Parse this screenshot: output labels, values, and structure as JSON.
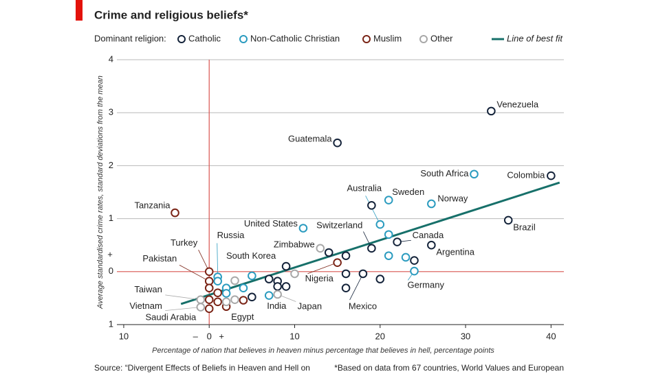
{
  "chart_data": {
    "type": "scatter",
    "title": "Crime and religious beliefs*",
    "legend_title": "Dominant religion:",
    "y_label": "Average standardised crime rates, standard deviations from the mean",
    "x_label": "Percentage of nation that believes in heaven minus percentage that believes in hell, percentage points",
    "source": "Source: “Divergent Effects of Beliefs in Heaven and Hell on",
    "footnote": "*Based on data from 67 countries, World Values and European",
    "axis_signs": {
      "x": [
        "–",
        "+"
      ],
      "y": [
        "+"
      ]
    },
    "xlim": [
      -10.8,
      41.5
    ],
    "ylim": [
      -1,
      4
    ],
    "xticks": [
      {
        "value": -10,
        "label": "10"
      },
      0,
      10,
      20,
      30,
      40
    ],
    "yticks": [
      {
        "value": -1,
        "label": "1"
      },
      0,
      1,
      2,
      3,
      4
    ],
    "grid": true,
    "grid_color": "#b8b8b8",
    "zero_color": "#d9534f",
    "series": [
      {
        "name": "Catholic",
        "color": "#14233a",
        "x": [
          33,
          15,
          40,
          35,
          22,
          26,
          19,
          18,
          19,
          14,
          16,
          9,
          16,
          20,
          16,
          24,
          7,
          8,
          8,
          9,
          5
        ],
        "y": [
          3.03,
          2.43,
          1.81,
          0.97,
          0.56,
          0.5,
          0.44,
          -0.04,
          1.25,
          0.36,
          0.3,
          0.1,
          -0.04,
          -0.14,
          -0.31,
          0.21,
          -0.14,
          -0.18,
          -0.28,
          -0.28,
          -0.48
        ],
        "labels": [
          "Venezuela",
          "Guatemala",
          "Colombia",
          "Brazil",
          "Canada",
          "Argentina",
          "Switzerland",
          "Mexico",
          null,
          null,
          null,
          null,
          null,
          null,
          null,
          null,
          null,
          null,
          null,
          null,
          null
        ]
      },
      {
        "name": "Non-Catholic Christian",
        "color": "#2a9bbf",
        "x": [
          31,
          21,
          26,
          11,
          20,
          21,
          21,
          23,
          24,
          5,
          1,
          1,
          2,
          4,
          7,
          2
        ],
        "y": [
          1.84,
          1.35,
          1.28,
          0.82,
          0.89,
          0.7,
          0.3,
          0.27,
          0.01,
          -0.08,
          -0.1,
          -0.18,
          -0.31,
          -0.31,
          -0.45,
          -0.41
        ],
        "labels": [
          "South Africa",
          "Sweden",
          "Norway",
          "United States",
          "Australia",
          null,
          null,
          null,
          "Germany",
          null,
          "Russia",
          null,
          null,
          "South Korea",
          "India",
          null
        ]
      },
      {
        "name": "Muslim",
        "color": "#7a2416",
        "x": [
          -4,
          15,
          0,
          0,
          0,
          1,
          0,
          1,
          0,
          2,
          4
        ],
        "y": [
          1.11,
          0.17,
          0,
          -0.18,
          -0.31,
          -0.4,
          -0.53,
          -0.57,
          -0.7,
          -0.66,
          -0.54
        ],
        "labels": [
          "Tanzania",
          "Nigeria",
          "Turkey",
          "Pakistan",
          null,
          null,
          null,
          null,
          "Saudi Arabia",
          "Egypt",
          null
        ]
      },
      {
        "name": "Other",
        "color": "#a8a8a8",
        "x": [
          13,
          10,
          3,
          8,
          -1,
          -1,
          3,
          2
        ],
        "y": [
          0.44,
          -0.04,
          -0.17,
          -0.43,
          -0.53,
          -0.67,
          -0.53,
          -0.57
        ],
        "labels": [
          "Zimbabwe",
          null,
          null,
          "Japan",
          "Taiwan",
          "Vietnam",
          null,
          null
        ]
      }
    ],
    "fit": {
      "name": "Line of best fit",
      "color": "#17706a",
      "x": [
        -3.3,
        41
      ],
      "y": [
        -0.61,
        1.68
      ]
    }
  }
}
